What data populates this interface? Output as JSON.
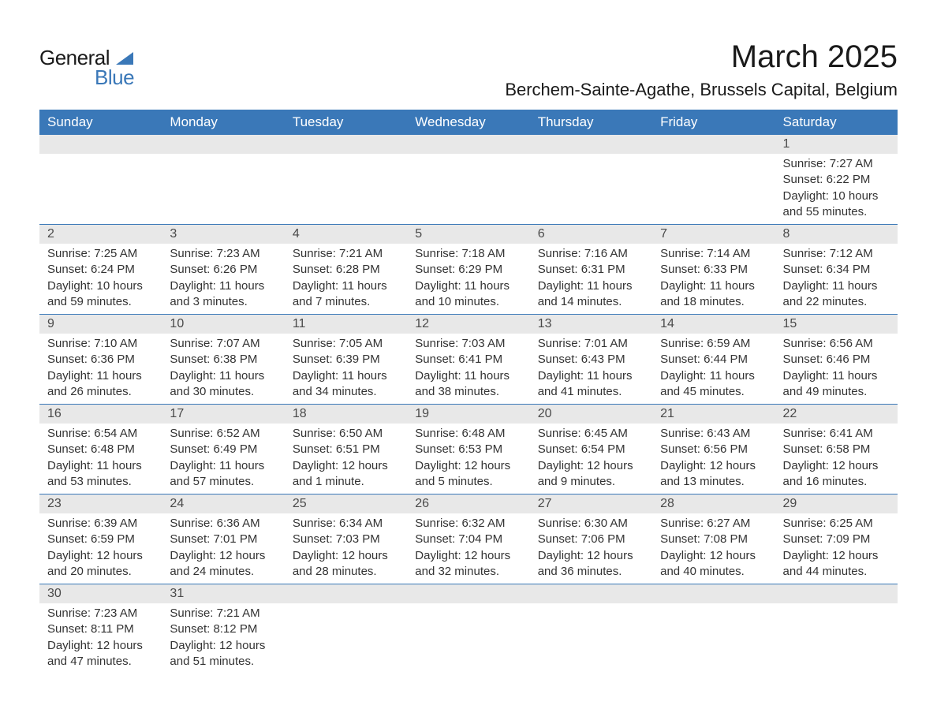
{
  "logo": {
    "text_general": "General",
    "text_blue": "Blue",
    "triangle_color": "#3a78b8"
  },
  "title": {
    "month": "March 2025",
    "location": "Berchem-Sainte-Agathe, Brussels Capital, Belgium"
  },
  "styling": {
    "header_bg": "#3a78b8",
    "header_text": "#ffffff",
    "daynum_bg": "#e8e8e8",
    "content_bg": "#ffffff",
    "text_color": "#333333",
    "border_color": "#3a78b8",
    "title_fontsize": 40,
    "location_fontsize": 22,
    "header_fontsize": 17,
    "daynum_fontsize": 16,
    "content_fontsize": 15
  },
  "day_headers": [
    "Sunday",
    "Monday",
    "Tuesday",
    "Wednesday",
    "Thursday",
    "Friday",
    "Saturday"
  ],
  "weeks": [
    {
      "days": [
        {
          "num": "",
          "sunrise": "",
          "sunset": "",
          "daylight1": "",
          "daylight2": ""
        },
        {
          "num": "",
          "sunrise": "",
          "sunset": "",
          "daylight1": "",
          "daylight2": ""
        },
        {
          "num": "",
          "sunrise": "",
          "sunset": "",
          "daylight1": "",
          "daylight2": ""
        },
        {
          "num": "",
          "sunrise": "",
          "sunset": "",
          "daylight1": "",
          "daylight2": ""
        },
        {
          "num": "",
          "sunrise": "",
          "sunset": "",
          "daylight1": "",
          "daylight2": ""
        },
        {
          "num": "",
          "sunrise": "",
          "sunset": "",
          "daylight1": "",
          "daylight2": ""
        },
        {
          "num": "1",
          "sunrise": "Sunrise: 7:27 AM",
          "sunset": "Sunset: 6:22 PM",
          "daylight1": "Daylight: 10 hours",
          "daylight2": "and 55 minutes."
        }
      ]
    },
    {
      "days": [
        {
          "num": "2",
          "sunrise": "Sunrise: 7:25 AM",
          "sunset": "Sunset: 6:24 PM",
          "daylight1": "Daylight: 10 hours",
          "daylight2": "and 59 minutes."
        },
        {
          "num": "3",
          "sunrise": "Sunrise: 7:23 AM",
          "sunset": "Sunset: 6:26 PM",
          "daylight1": "Daylight: 11 hours",
          "daylight2": "and 3 minutes."
        },
        {
          "num": "4",
          "sunrise": "Sunrise: 7:21 AM",
          "sunset": "Sunset: 6:28 PM",
          "daylight1": "Daylight: 11 hours",
          "daylight2": "and 7 minutes."
        },
        {
          "num": "5",
          "sunrise": "Sunrise: 7:18 AM",
          "sunset": "Sunset: 6:29 PM",
          "daylight1": "Daylight: 11 hours",
          "daylight2": "and 10 minutes."
        },
        {
          "num": "6",
          "sunrise": "Sunrise: 7:16 AM",
          "sunset": "Sunset: 6:31 PM",
          "daylight1": "Daylight: 11 hours",
          "daylight2": "and 14 minutes."
        },
        {
          "num": "7",
          "sunrise": "Sunrise: 7:14 AM",
          "sunset": "Sunset: 6:33 PM",
          "daylight1": "Daylight: 11 hours",
          "daylight2": "and 18 minutes."
        },
        {
          "num": "8",
          "sunrise": "Sunrise: 7:12 AM",
          "sunset": "Sunset: 6:34 PM",
          "daylight1": "Daylight: 11 hours",
          "daylight2": "and 22 minutes."
        }
      ]
    },
    {
      "days": [
        {
          "num": "9",
          "sunrise": "Sunrise: 7:10 AM",
          "sunset": "Sunset: 6:36 PM",
          "daylight1": "Daylight: 11 hours",
          "daylight2": "and 26 minutes."
        },
        {
          "num": "10",
          "sunrise": "Sunrise: 7:07 AM",
          "sunset": "Sunset: 6:38 PM",
          "daylight1": "Daylight: 11 hours",
          "daylight2": "and 30 minutes."
        },
        {
          "num": "11",
          "sunrise": "Sunrise: 7:05 AM",
          "sunset": "Sunset: 6:39 PM",
          "daylight1": "Daylight: 11 hours",
          "daylight2": "and 34 minutes."
        },
        {
          "num": "12",
          "sunrise": "Sunrise: 7:03 AM",
          "sunset": "Sunset: 6:41 PM",
          "daylight1": "Daylight: 11 hours",
          "daylight2": "and 38 minutes."
        },
        {
          "num": "13",
          "sunrise": "Sunrise: 7:01 AM",
          "sunset": "Sunset: 6:43 PM",
          "daylight1": "Daylight: 11 hours",
          "daylight2": "and 41 minutes."
        },
        {
          "num": "14",
          "sunrise": "Sunrise: 6:59 AM",
          "sunset": "Sunset: 6:44 PM",
          "daylight1": "Daylight: 11 hours",
          "daylight2": "and 45 minutes."
        },
        {
          "num": "15",
          "sunrise": "Sunrise: 6:56 AM",
          "sunset": "Sunset: 6:46 PM",
          "daylight1": "Daylight: 11 hours",
          "daylight2": "and 49 minutes."
        }
      ]
    },
    {
      "days": [
        {
          "num": "16",
          "sunrise": "Sunrise: 6:54 AM",
          "sunset": "Sunset: 6:48 PM",
          "daylight1": "Daylight: 11 hours",
          "daylight2": "and 53 minutes."
        },
        {
          "num": "17",
          "sunrise": "Sunrise: 6:52 AM",
          "sunset": "Sunset: 6:49 PM",
          "daylight1": "Daylight: 11 hours",
          "daylight2": "and 57 minutes."
        },
        {
          "num": "18",
          "sunrise": "Sunrise: 6:50 AM",
          "sunset": "Sunset: 6:51 PM",
          "daylight1": "Daylight: 12 hours",
          "daylight2": "and 1 minute."
        },
        {
          "num": "19",
          "sunrise": "Sunrise: 6:48 AM",
          "sunset": "Sunset: 6:53 PM",
          "daylight1": "Daylight: 12 hours",
          "daylight2": "and 5 minutes."
        },
        {
          "num": "20",
          "sunrise": "Sunrise: 6:45 AM",
          "sunset": "Sunset: 6:54 PM",
          "daylight1": "Daylight: 12 hours",
          "daylight2": "and 9 minutes."
        },
        {
          "num": "21",
          "sunrise": "Sunrise: 6:43 AM",
          "sunset": "Sunset: 6:56 PM",
          "daylight1": "Daylight: 12 hours",
          "daylight2": "and 13 minutes."
        },
        {
          "num": "22",
          "sunrise": "Sunrise: 6:41 AM",
          "sunset": "Sunset: 6:58 PM",
          "daylight1": "Daylight: 12 hours",
          "daylight2": "and 16 minutes."
        }
      ]
    },
    {
      "days": [
        {
          "num": "23",
          "sunrise": "Sunrise: 6:39 AM",
          "sunset": "Sunset: 6:59 PM",
          "daylight1": "Daylight: 12 hours",
          "daylight2": "and 20 minutes."
        },
        {
          "num": "24",
          "sunrise": "Sunrise: 6:36 AM",
          "sunset": "Sunset: 7:01 PM",
          "daylight1": "Daylight: 12 hours",
          "daylight2": "and 24 minutes."
        },
        {
          "num": "25",
          "sunrise": "Sunrise: 6:34 AM",
          "sunset": "Sunset: 7:03 PM",
          "daylight1": "Daylight: 12 hours",
          "daylight2": "and 28 minutes."
        },
        {
          "num": "26",
          "sunrise": "Sunrise: 6:32 AM",
          "sunset": "Sunset: 7:04 PM",
          "daylight1": "Daylight: 12 hours",
          "daylight2": "and 32 minutes."
        },
        {
          "num": "27",
          "sunrise": "Sunrise: 6:30 AM",
          "sunset": "Sunset: 7:06 PM",
          "daylight1": "Daylight: 12 hours",
          "daylight2": "and 36 minutes."
        },
        {
          "num": "28",
          "sunrise": "Sunrise: 6:27 AM",
          "sunset": "Sunset: 7:08 PM",
          "daylight1": "Daylight: 12 hours",
          "daylight2": "and 40 minutes."
        },
        {
          "num": "29",
          "sunrise": "Sunrise: 6:25 AM",
          "sunset": "Sunset: 7:09 PM",
          "daylight1": "Daylight: 12 hours",
          "daylight2": "and 44 minutes."
        }
      ]
    },
    {
      "days": [
        {
          "num": "30",
          "sunrise": "Sunrise: 7:23 AM",
          "sunset": "Sunset: 8:11 PM",
          "daylight1": "Daylight: 12 hours",
          "daylight2": "and 47 minutes."
        },
        {
          "num": "31",
          "sunrise": "Sunrise: 7:21 AM",
          "sunset": "Sunset: 8:12 PM",
          "daylight1": "Daylight: 12 hours",
          "daylight2": "and 51 minutes."
        },
        {
          "num": "",
          "sunrise": "",
          "sunset": "",
          "daylight1": "",
          "daylight2": ""
        },
        {
          "num": "",
          "sunrise": "",
          "sunset": "",
          "daylight1": "",
          "daylight2": ""
        },
        {
          "num": "",
          "sunrise": "",
          "sunset": "",
          "daylight1": "",
          "daylight2": ""
        },
        {
          "num": "",
          "sunrise": "",
          "sunset": "",
          "daylight1": "",
          "daylight2": ""
        },
        {
          "num": "",
          "sunrise": "",
          "sunset": "",
          "daylight1": "",
          "daylight2": ""
        }
      ]
    }
  ]
}
